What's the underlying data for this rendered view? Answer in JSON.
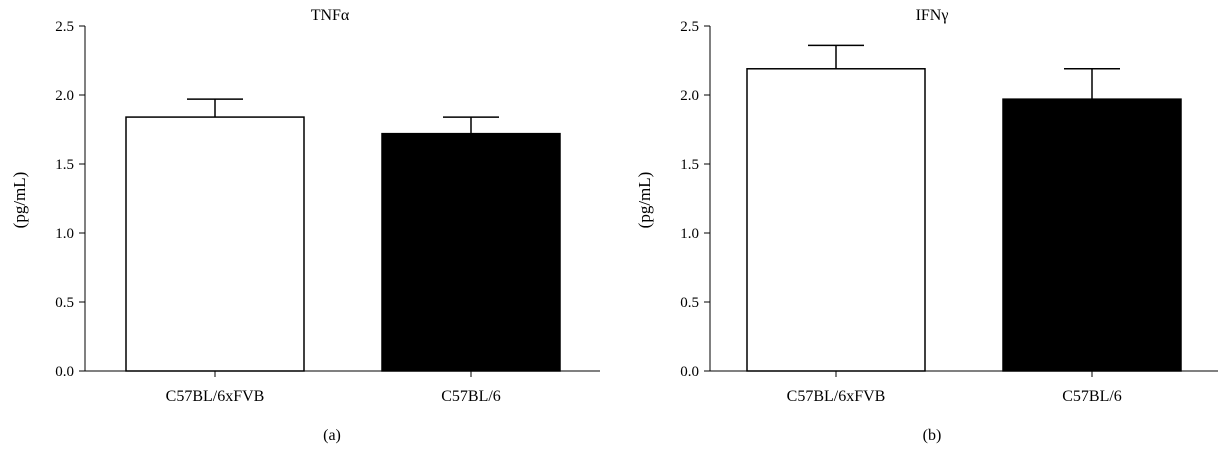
{
  "chart_data": [
    {
      "type": "bar",
      "title": "TNFα",
      "ylabel": "(pg/mL)",
      "xlabel": "",
      "panel_label": "(a)",
      "categories": [
        "C57BL/6xFVB",
        "C57BL/6"
      ],
      "values": [
        1.84,
        1.72
      ],
      "errors": [
        0.13,
        0.12
      ],
      "bar_colors": [
        "#ffffff",
        "#000000"
      ],
      "ylim": [
        0,
        2.5
      ],
      "yticks": [
        "0.0",
        "0.5",
        "1.0",
        "1.5",
        "2.0",
        "2.5"
      ],
      "grid": false,
      "legend": "none"
    },
    {
      "type": "bar",
      "title": "IFNγ",
      "ylabel": "(pg/mL)",
      "xlabel": "",
      "panel_label": "(b)",
      "categories": [
        "C57BL/6xFVB",
        "C57BL/6"
      ],
      "values": [
        2.19,
        1.97
      ],
      "errors": [
        0.17,
        0.22
      ],
      "bar_colors": [
        "#ffffff",
        "#000000"
      ],
      "ylim": [
        0,
        2.5
      ],
      "yticks": [
        "0.0",
        "0.5",
        "1.0",
        "1.5",
        "2.0",
        "2.5"
      ],
      "grid": false,
      "legend": "none"
    }
  ]
}
